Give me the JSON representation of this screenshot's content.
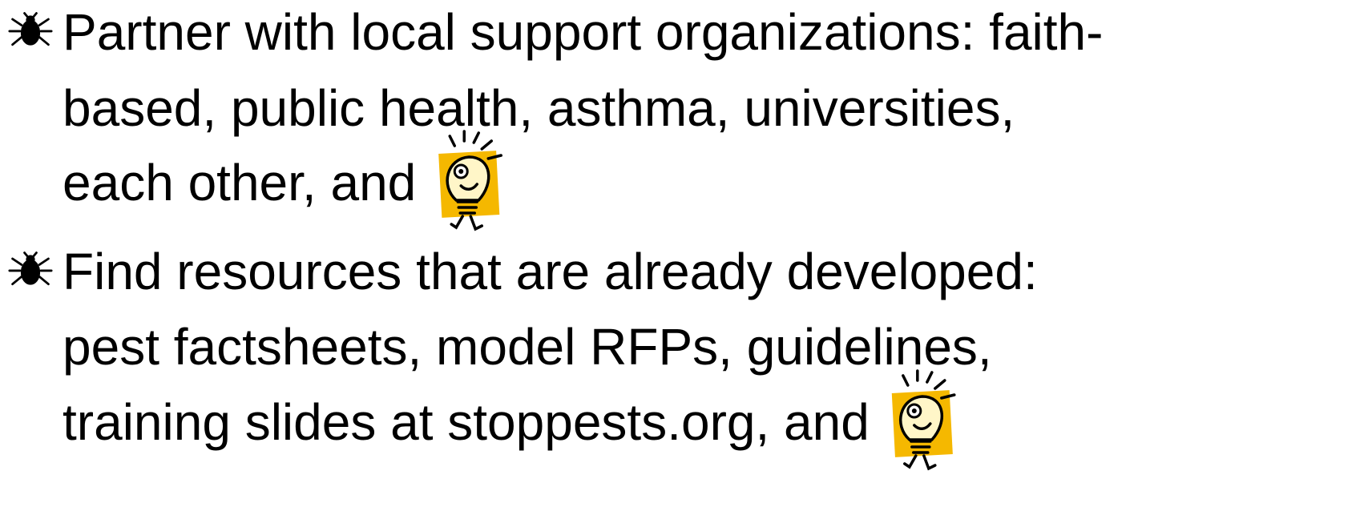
{
  "bullets": [
    {
      "lines": [
        "Partner with local support organizations: faith-",
        "based, public health, asthma, universities,",
        "each other, and"
      ]
    },
    {
      "lines": [
        "Find resources that are already developed:",
        "pest factsheets, model RFPs, guidelines,",
        "training slides at stoppests.org, and"
      ]
    }
  ]
}
